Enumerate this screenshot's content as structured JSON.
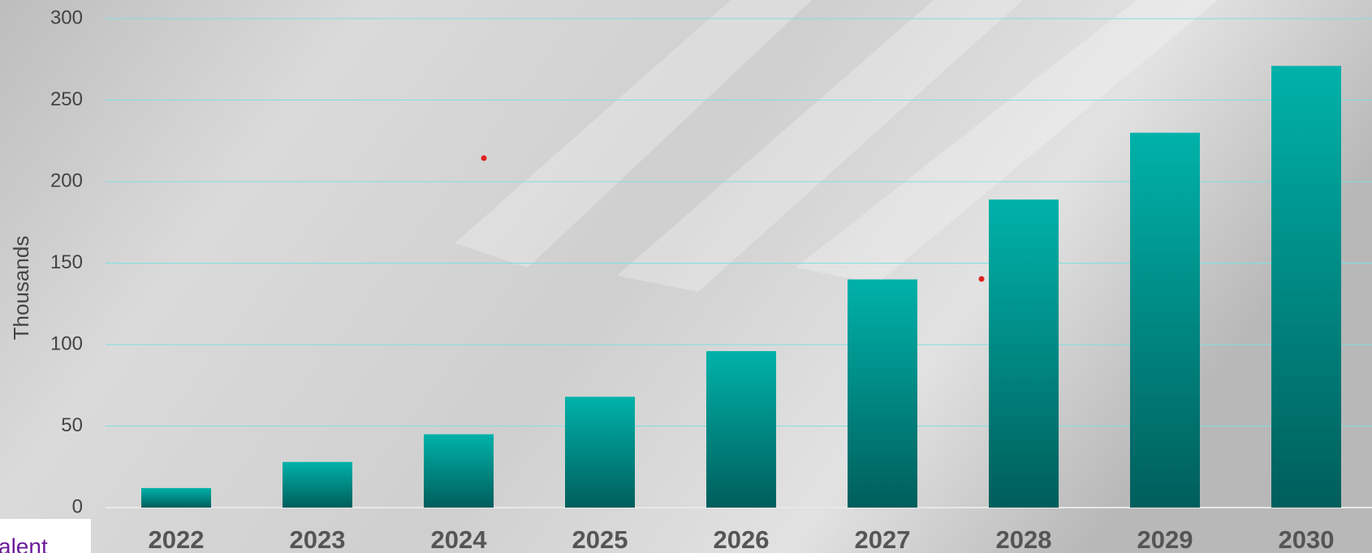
{
  "chart_data": {
    "type": "bar",
    "ylabel": "Thousands",
    "categories": [
      "2022",
      "2023",
      "2024",
      "2025",
      "2026",
      "2027",
      "2028",
      "2029",
      "2030"
    ],
    "values": [
      12,
      28,
      45,
      68,
      96,
      140,
      189,
      230,
      271
    ],
    "color": "#00b2aa",
    "ylim": [
      0,
      300
    ],
    "yticks": [
      0,
      50,
      100,
      150,
      200,
      250,
      300
    ],
    "grid": true
  },
  "logo": "alent"
}
